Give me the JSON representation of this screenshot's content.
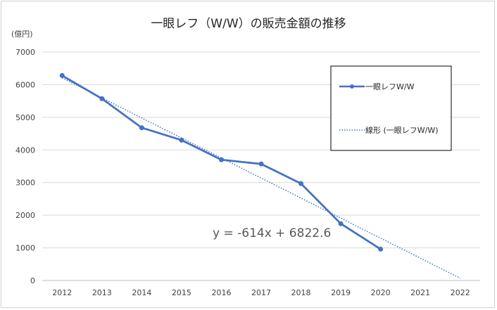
{
  "chart_data": {
    "type": "line",
    "title": "一眼レフ（W/W）の販売金額の推移",
    "ylabel": "(億円)",
    "xlabel": "",
    "categories": [
      "2012",
      "2013",
      "2014",
      "2015",
      "2016",
      "2017",
      "2018",
      "2019",
      "2020",
      "2021",
      "2022"
    ],
    "y_ticks": [
      "0",
      "1000",
      "2000",
      "3000",
      "4000",
      "5000",
      "6000",
      "7000"
    ],
    "ylim": [
      0,
      7000
    ],
    "grid": true,
    "legend_position": "top-right",
    "series": [
      {
        "name": "一眼レフW/W",
        "style": "solid-markers",
        "color": "#4472C4",
        "x": [
          2012,
          2013,
          2014,
          2015,
          2016,
          2017,
          2018,
          2019,
          2020
        ],
        "values": [
          6280,
          5570,
          4680,
          4300,
          3700,
          3570,
          2970,
          1740,
          960
        ]
      }
    ],
    "trendline": {
      "name": "線形 (一眼レフW/W)",
      "style": "dotted",
      "color": "#4472C4",
      "slope": -614,
      "intercept": 6822.6,
      "x_start": 2012,
      "x_end": 2022,
      "equation": "y = -614x + 6822.6"
    }
  }
}
